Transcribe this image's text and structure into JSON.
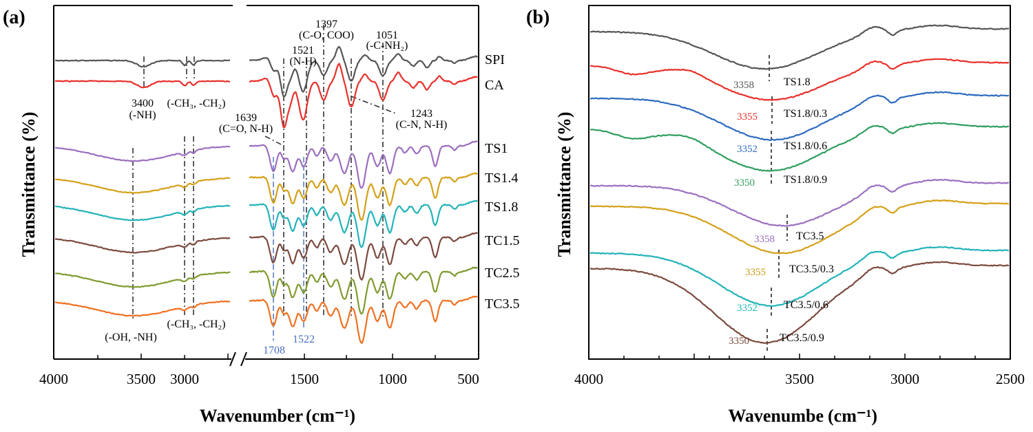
{
  "chart_data": [
    {
      "panel_label": "(a)",
      "type": "line",
      "xlabel": "Wavenumber",
      "xlabel_unit": "(cm⁻¹)",
      "ylabel": "Transmittance (%)",
      "x_segments": [
        [
          4000,
          2600
        ],
        [
          1800,
          500
        ]
      ],
      "x_ticks": [
        "4000",
        "3500",
        "3000",
        "1500",
        "1000",
        "500"
      ],
      "series": [
        {
          "name": "SPI",
          "color": "#555555"
        },
        {
          "name": "CA",
          "color": "#e8302b"
        },
        {
          "name": "TS1",
          "color": "#9b6fbf"
        },
        {
          "name": "TS1.4",
          "color": "#d4a017"
        },
        {
          "name": "TS1.8",
          "color": "#22b3b8"
        },
        {
          "name": "TC1.5",
          "color": "#7b4a3e"
        },
        {
          "name": "TC2.5",
          "color": "#7f9a2e"
        },
        {
          "name": "TC3.5",
          "color": "#f07020"
        }
      ],
      "annotations": [
        {
          "peak": "1397",
          "group": "(C-O, COO)"
        },
        {
          "peak": "1051",
          "group": "(-C-NH₂)"
        },
        {
          "peak": "1521",
          "group": "(N-H)"
        },
        {
          "peak": "3400",
          "group": "(-NH)"
        },
        {
          "peak": "",
          "group": "(-CH₃, -CH₂)"
        },
        {
          "peak": "1639",
          "group": "(C=O, N-H)"
        },
        {
          "peak": "1243",
          "group": "(C-N, N-H)"
        },
        {
          "peak": "",
          "group": "(-OH, -NH)"
        },
        {
          "peak": "",
          "group": "(-CH₃, -CH₂)"
        },
        {
          "peak": "1708",
          "group": ""
        },
        {
          "peak": "1522",
          "group": ""
        }
      ]
    },
    {
      "panel_label": "(b)",
      "type": "line",
      "xlabel": "Wavenumbe",
      "xlabel_unit": "(cm⁻¹)",
      "ylabel": "Transmittance (%)",
      "xlim": [
        4000,
        2500
      ],
      "x_ticks": [
        "4000",
        "3500",
        "3000",
        "2500"
      ],
      "series": [
        {
          "name": "TS1.8",
          "color": "#555555",
          "peak": "3358",
          "label_color": "#555555"
        },
        {
          "name": "TS1.8/0.3",
          "color": "#e8302b",
          "peak": "3355",
          "label_color": "#e8302b"
        },
        {
          "name": "TS1.8/0.6",
          "color": "#2e6bbf",
          "peak": "3352",
          "label_color": "#2e6bbf"
        },
        {
          "name": "TS1.8/0.9",
          "color": "#2e9e5e",
          "peak": "3350",
          "label_color": "#2e9e5e"
        },
        {
          "name": "TC3.5",
          "color": "#9b6fbf",
          "peak": "3358",
          "label_color": "#9b6fbf"
        },
        {
          "name": "TC3.5/0.3",
          "color": "#d4a017",
          "peak": "3355",
          "label_color": "#c99a10"
        },
        {
          "name": "TC3.5/0.6",
          "color": "#22b3b8",
          "peak": "3352",
          "label_color": "#22b3b8"
        },
        {
          "name": "TC3.5/0.9",
          "color": "#7b4a3e",
          "peak": "3350",
          "label_color": "#7b4a3e"
        }
      ]
    }
  ]
}
